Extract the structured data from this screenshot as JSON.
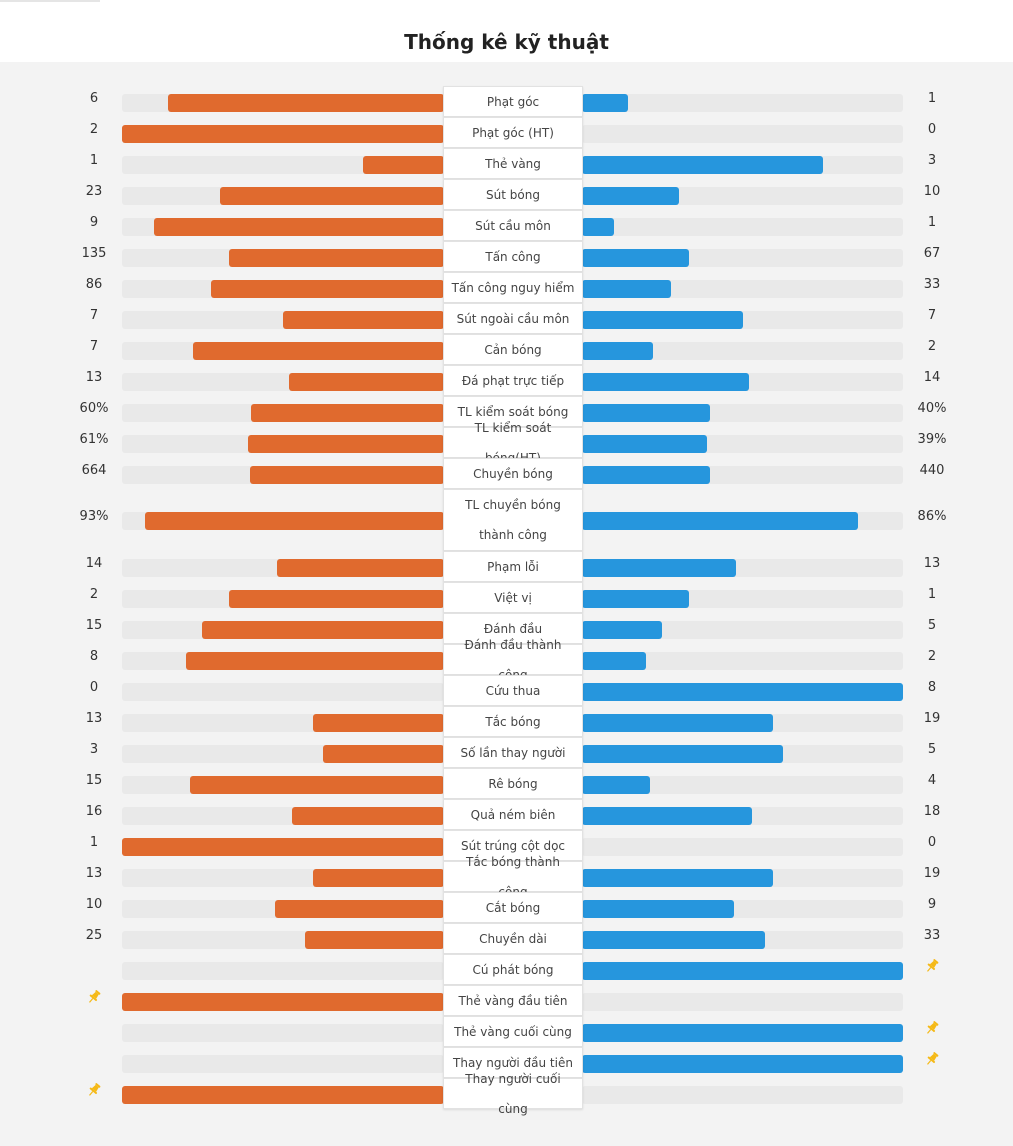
{
  "title": "Thống kê kỹ thuật",
  "colors": {
    "home": "#e06a2e",
    "away": "#2696dd",
    "track": "#e9e9e9",
    "pin": "#f5b916"
  },
  "stats": [
    {
      "label": "Phạt góc",
      "home": "6",
      "away": "1",
      "home_share": 0.857,
      "away_share": 0.143
    },
    {
      "label": "Phạt góc (HT)",
      "home": "2",
      "away": "0",
      "home_share": 1.0,
      "away_share": 0.0
    },
    {
      "label": "Thẻ vàng",
      "home": "1",
      "away": "3",
      "home_share": 0.25,
      "away_share": 0.75
    },
    {
      "label": "Sút bóng",
      "home": "23",
      "away": "10",
      "home_share": 0.697,
      "away_share": 0.303
    },
    {
      "label": "Sút cầu môn",
      "home": "9",
      "away": "1",
      "home_share": 0.9,
      "away_share": 0.1
    },
    {
      "label": "Tấn công",
      "home": "135",
      "away": "67",
      "home_share": 0.668,
      "away_share": 0.332
    },
    {
      "label": "Tấn công nguy hiểm",
      "home": "86",
      "away": "33",
      "home_share": 0.723,
      "away_share": 0.277
    },
    {
      "label": "Sút ngoài cầu môn",
      "home": "7",
      "away": "7",
      "home_share": 0.5,
      "away_share": 0.5
    },
    {
      "label": "Cản bóng",
      "home": "7",
      "away": "2",
      "home_share": 0.778,
      "away_share": 0.222
    },
    {
      "label": "Đá phạt trực tiếp",
      "home": "13",
      "away": "14",
      "home_share": 0.481,
      "away_share": 0.519
    },
    {
      "label": "TL kiểm soát bóng",
      "home": "60%",
      "away": "40%",
      "home_share": 0.6,
      "away_share": 0.4
    },
    {
      "label": "TL kiểm soát bóng(HT)",
      "home": "61%",
      "away": "39%",
      "home_share": 0.61,
      "away_share": 0.39
    },
    {
      "label": "Chuyền bóng",
      "home": "664",
      "away": "440",
      "home_share": 0.601,
      "away_share": 0.399
    },
    {
      "label": "TL chuyền bóng thành công",
      "home": "93%",
      "away": "86%",
      "home_share": 0.93,
      "away_share": 0.86,
      "tall": true
    },
    {
      "label": "Phạm lỗi",
      "home": "14",
      "away": "13",
      "home_share": 0.519,
      "away_share": 0.481
    },
    {
      "label": "Việt vị",
      "home": "2",
      "away": "1",
      "home_share": 0.667,
      "away_share": 0.333
    },
    {
      "label": "Đánh đầu",
      "home": "15",
      "away": "5",
      "home_share": 0.75,
      "away_share": 0.25
    },
    {
      "label": "Đánh đầu thành công",
      "home": "8",
      "away": "2",
      "home_share": 0.8,
      "away_share": 0.2
    },
    {
      "label": "Cứu thua",
      "home": "0",
      "away": "8",
      "home_share": 0.0,
      "away_share": 1.0
    },
    {
      "label": "Tắc bóng",
      "home": "13",
      "away": "19",
      "home_share": 0.406,
      "away_share": 0.594
    },
    {
      "label": "Số lần thay người",
      "home": "3",
      "away": "5",
      "home_share": 0.375,
      "away_share": 0.625
    },
    {
      "label": "Rê bóng",
      "home": "15",
      "away": "4",
      "home_share": 0.789,
      "away_share": 0.211
    },
    {
      "label": "Quả ném biên",
      "home": "16",
      "away": "18",
      "home_share": 0.471,
      "away_share": 0.529
    },
    {
      "label": "Sút trúng cột dọc",
      "home": "1",
      "away": "0",
      "home_share": 1.0,
      "away_share": 0.0
    },
    {
      "label": "Tắc bóng thành công",
      "home": "13",
      "away": "19",
      "home_share": 0.406,
      "away_share": 0.594
    },
    {
      "label": "Cắt bóng",
      "home": "10",
      "away": "9",
      "home_share": 0.526,
      "away_share": 0.474
    },
    {
      "label": "Chuyền dài",
      "home": "25",
      "away": "33",
      "home_share": 0.431,
      "away_share": 0.569
    },
    {
      "label": "Cú phát bóng",
      "home": "",
      "away": "",
      "home_share": 0.0,
      "away_share": 1.0,
      "home_pin": false,
      "away_pin": true
    },
    {
      "label": "Thẻ vàng đầu tiên",
      "home": "",
      "away": "",
      "home_share": 1.0,
      "away_share": 0.0,
      "home_pin": true,
      "away_pin": false
    },
    {
      "label": "Thẻ vàng cuối cùng",
      "home": "",
      "away": "",
      "home_share": 0.0,
      "away_share": 1.0,
      "home_pin": false,
      "away_pin": true
    },
    {
      "label": "Thay người đầu tiên",
      "home": "",
      "away": "",
      "home_share": 0.0,
      "away_share": 1.0,
      "home_pin": false,
      "away_pin": true
    },
    {
      "label": "Thay người cuối cùng",
      "home": "",
      "away": "",
      "home_share": 1.0,
      "away_share": 0.0,
      "home_pin": true,
      "away_pin": false
    }
  ]
}
